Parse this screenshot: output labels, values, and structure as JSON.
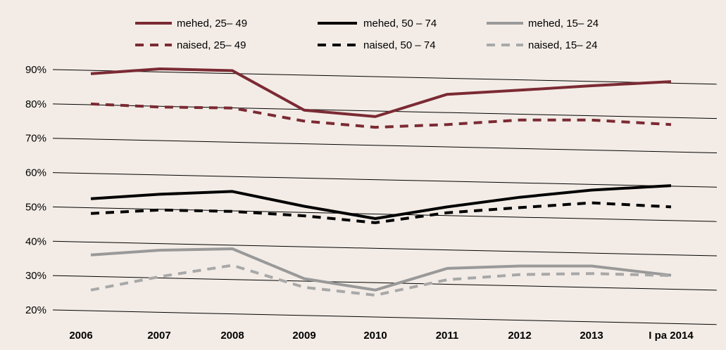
{
  "chart_data": {
    "type": "line",
    "categories": [
      "2006",
      "2007",
      "2008",
      "2009",
      "2010",
      "2011",
      "2012",
      "2013",
      "I pa 2014"
    ],
    "ylim": [
      20,
      90
    ],
    "yticks": [
      20,
      30,
      40,
      50,
      60,
      70,
      80,
      90
    ],
    "ytick_labels": [
      "20%",
      "30%",
      "40%",
      "50%",
      "60%",
      "70%",
      "80%",
      "90%"
    ],
    "grid": true,
    "legend_position": "top",
    "series": [
      {
        "name": "mehed, 25– 49",
        "color": "#7b2a33",
        "dashed": false,
        "values": [
          88.8,
          90.2,
          89.7,
          78.2,
          76.3,
          82.8,
          84.0,
          85.3,
          86.5
        ]
      },
      {
        "name": "mehed, 50 – 74",
        "color": "#000000",
        "dashed": false,
        "values": [
          52.4,
          53.7,
          54.5,
          50.2,
          46.6,
          50.0,
          52.8,
          54.9,
          56.2
        ]
      },
      {
        "name": "mehed, 15– 24",
        "color": "#999999",
        "dashed": false,
        "values": [
          36.0,
          37.4,
          37.8,
          29.1,
          25.8,
          32.1,
          32.8,
          32.8,
          30.1
        ]
      },
      {
        "name": "naised, 25– 49",
        "color": "#7b2a33",
        "dashed": true,
        "values": [
          80.0,
          79.1,
          78.8,
          75.0,
          73.2,
          74.0,
          75.3,
          75.3,
          74.0
        ]
      },
      {
        "name": "naised, 50 – 74",
        "color": "#000000",
        "dashed": true,
        "values": [
          48.1,
          49.1,
          48.7,
          47.4,
          45.4,
          48.3,
          49.8,
          51.2,
          50.0
        ]
      },
      {
        "name": "naised, 15– 24",
        "color": "#a8a8a8",
        "dashed": true,
        "values": [
          25.8,
          29.7,
          33.0,
          26.6,
          24.3,
          28.8,
          30.3,
          30.6,
          30.0
        ]
      }
    ]
  }
}
